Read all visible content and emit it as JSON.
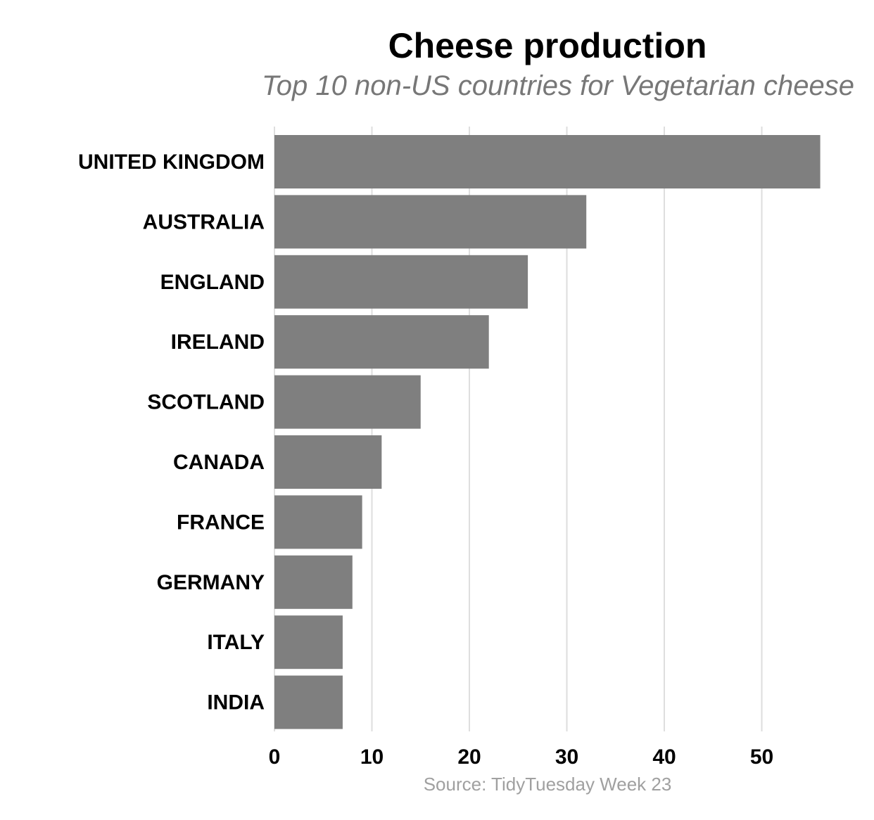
{
  "chart_data": {
    "type": "bar",
    "orientation": "horizontal",
    "title": "Cheese production",
    "subtitle": "Top 10 non-US countries for Vegetarian cheese",
    "caption": "Source: TidyTuesday Week 23",
    "categories": [
      "UNITED KINGDOM",
      "AUSTRALIA",
      "ENGLAND",
      "IRELAND",
      "SCOTLAND",
      "CANADA",
      "FRANCE",
      "GERMANY",
      "ITALY",
      "INDIA"
    ],
    "values": [
      56,
      32,
      26,
      22,
      15,
      11,
      9,
      8,
      7,
      7
    ],
    "xticks": [
      0,
      10,
      20,
      30,
      40,
      50
    ],
    "xlim": [
      0,
      56
    ],
    "grid": "vertical",
    "xlabel": "",
    "ylabel": "",
    "bar_color": "#7f7f7f"
  }
}
